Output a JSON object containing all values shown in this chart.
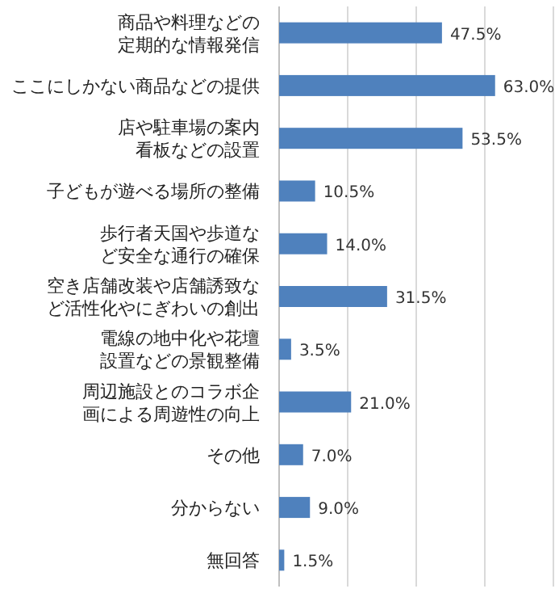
{
  "chart_data": {
    "type": "bar",
    "orientation": "horizontal",
    "categories": [
      "商品や料理などの定期的な情報発信",
      "ここにしかない商品などの提供",
      "店や駐車場の案内看板などの設置",
      "子どもが遊べる場所の整備",
      "歩行者天国や歩道など安全な通行の確保",
      "空き店舗改装や店舗誘致など活性化やにぎわいの創出",
      "電線の地中化や花壇設置などの景観整備",
      "周辺施設とのコラボ企画による周遊性の向上",
      "その他",
      "分からない",
      "無回答"
    ],
    "values": [
      47.5,
      63.0,
      53.5,
      10.5,
      14.0,
      31.5,
      3.5,
      21.0,
      7.0,
      9.0,
      1.5
    ],
    "value_labels": [
      "47.5%",
      "63.0%",
      "53.5%",
      "10.5%",
      "14.0%",
      "31.5%",
      "3.5%",
      "21.0%",
      "7.0%",
      "9.0%",
      "1.5%"
    ],
    "color": "#4f81bd",
    "xlim": [
      0,
      80
    ],
    "xticks": [
      {
        "value": 0,
        "label": null
      },
      {
        "value": 20,
        "label": null
      },
      {
        "value": 40,
        "label": null
      },
      {
        "value": 60,
        "label": null
      },
      {
        "value": 80,
        "label": null
      }
    ],
    "grid": "x",
    "tick_labels": "y"
  }
}
